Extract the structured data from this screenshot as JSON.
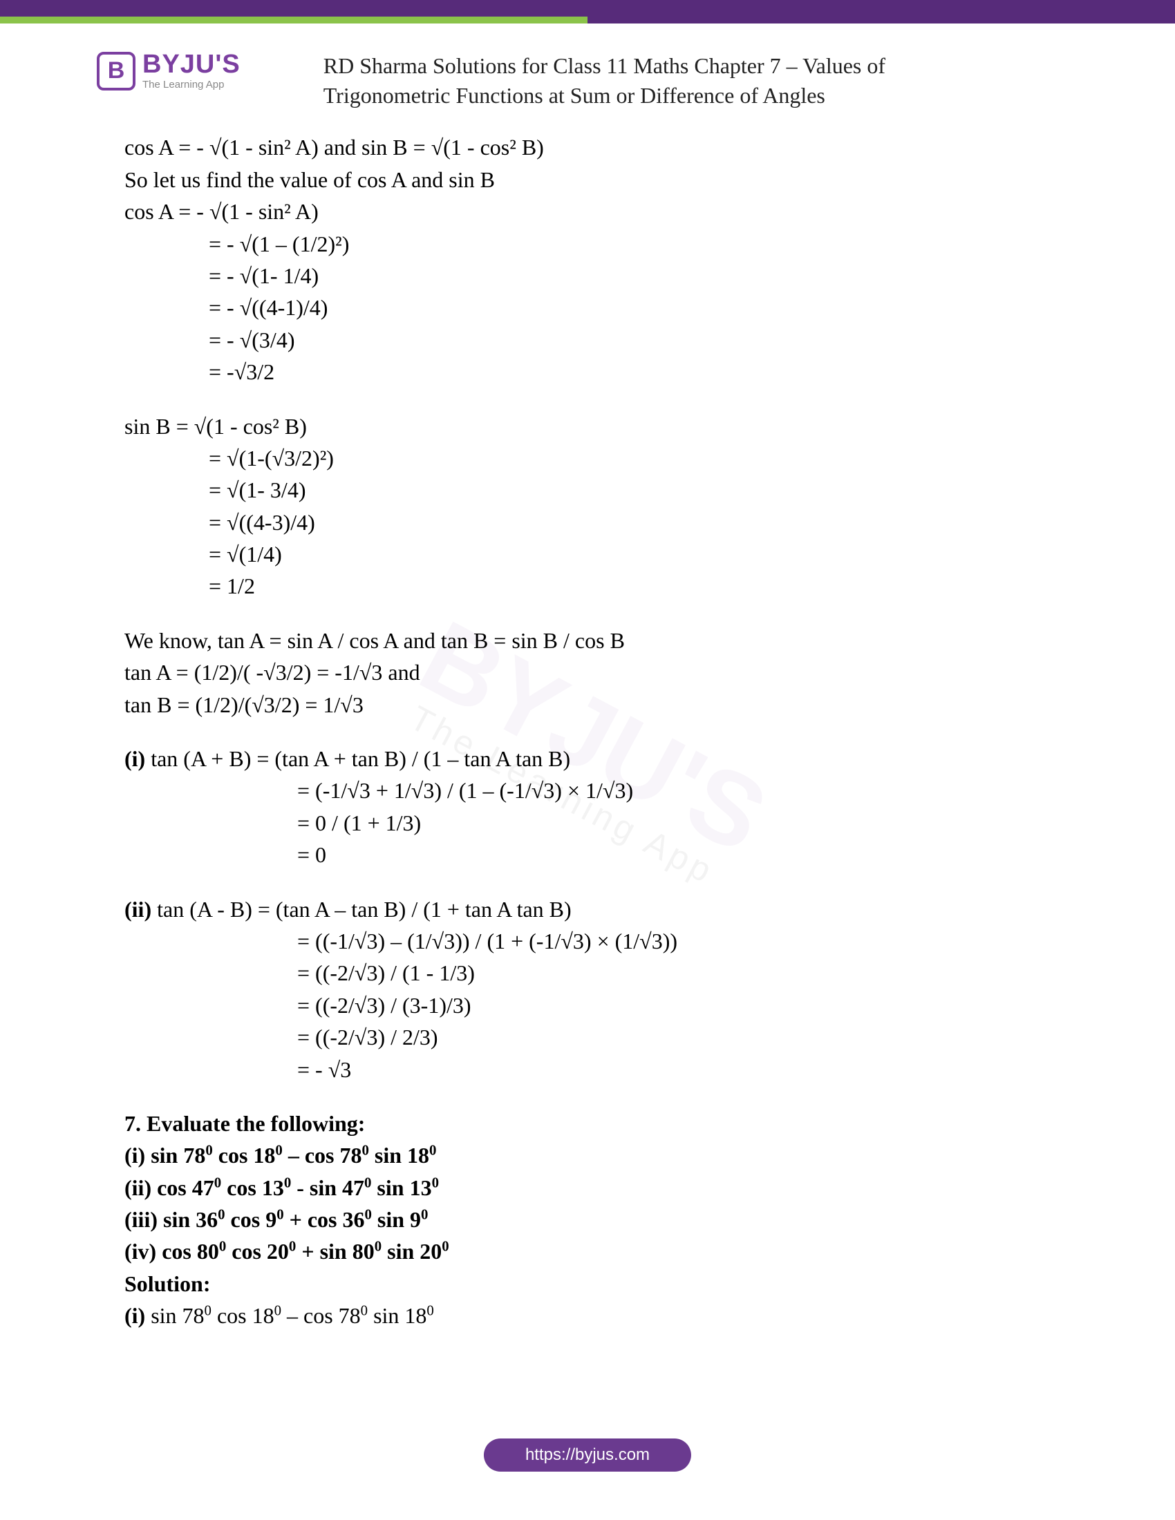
{
  "brand": {
    "mark": "B",
    "name": "BYJU'S",
    "tagline": "The Learning App"
  },
  "doc": {
    "title_line1": "RD Sharma Solutions for Class 11 Maths Chapter 7 – Values of",
    "title_line2": "Trigonometric Functions at Sum or Difference of Angles"
  },
  "watermark": {
    "main": "BYJU'S",
    "sub": "The Learning App"
  },
  "body": {
    "l1": "cos A = - √(1 - sin² A) and sin B = √(1 - cos² B)",
    "l2": "So let us find the value of cos A and sin B",
    "l3": "cos A = - √(1 - sin² A)",
    "l4": "= - √(1 – (1/2)²)",
    "l5": "= - √(1- 1/4)",
    "l6": "= - √((4-1)/4)",
    "l7": "= - √(3/4)",
    "l8": "= -√3/2",
    "l9": "sin B = √(1 - cos² B)",
    "l10": "= √(1-(√3/2)²)",
    "l11": "= √(1- 3/4)",
    "l12": "= √((4-3)/4)",
    "l13": "= √(1/4)",
    "l14": "= 1/2",
    "l15": "We know, tan A = sin A / cos A and tan B = sin B / cos B",
    "l16": "tan A = (1/2)/( -√3/2) = -1/√3 and",
    "l17": "tan B = (1/2)/(√3/2) = 1/√3",
    "l18a": "(i)",
    "l18b": " tan (A + B) = (tan A + tan B) / (1 – tan A tan B)",
    "l19": "= (-1/√3 + 1/√3) / (1 – (-1/√3) × 1/√3)",
    "l20": "= 0 / (1 + 1/3)",
    "l21": "= 0",
    "l22a": "(ii)",
    "l22b": " tan (A - B) = (tan A – tan B) / (1 + tan A tan B)",
    "l23": "= ((-1/√3) – (1/√3)) / (1 + (-1/√3) × (1/√3))",
    "l24": "= ((-2/√3) / (1 - 1/3)",
    "l25": "= ((-2/√3) / (3-1)/3)",
    "l26": "= ((-2/√3) / 2/3)",
    "l27": "= - √3",
    "q7": "7. Evaluate the following:",
    "q7sol": "Solution:"
  },
  "footer": {
    "url": "https://byjus.com"
  }
}
